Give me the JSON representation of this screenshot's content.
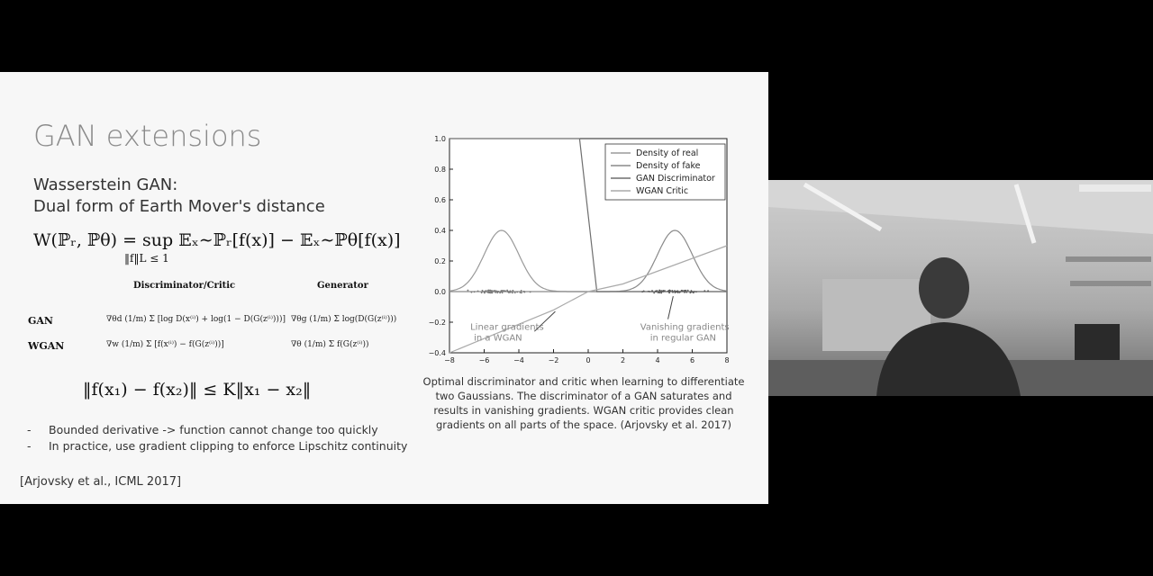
{
  "slide": {
    "title": "GAN extensions",
    "subtitle_line1": "Wasserstein GAN:",
    "subtitle_line2": "Dual form of Earth Mover's distance",
    "formula_main": "W(ℙᵣ, ℙθ) =  sup   𝔼ₓ∼ℙᵣ[f(x)] − 𝔼ₓ∼ℙθ[f(x)]",
    "formula_sub": "‖f‖L ≤ 1",
    "table": {
      "col_discriminator": "Discriminator/Critic",
      "col_generator": "Generator",
      "row_gan": "GAN",
      "row_wgan": "WGAN",
      "gan_disc": "∇θd (1/m) Σ [log D(x⁽ⁱ⁾) + log(1 − D(G(z⁽ⁱ⁾)))]",
      "gan_gen": "∇θg (1/m) Σ log(D(G(z⁽ⁱ⁾)))",
      "wgan_disc": "∇w (1/m) Σ [f(x⁽ⁱ⁾) − f(G(z⁽ⁱ⁾))]",
      "wgan_gen": "∇θ (1/m) Σ f(G(z⁽ⁱ⁾))"
    },
    "formula_lipschitz": "‖f(x₁) − f(x₂)‖ ≤ K‖x₁ − x₂‖",
    "bullets": [
      "Bounded derivative -> function cannot change too quickly",
      "In practice, use gradient clipping to enforce Lipschitz continuity"
    ],
    "bullet_marker": "-",
    "citation": "[Arjovsky et al., ICML 2017]",
    "caption": "Optimal discriminator and critic when learning to differentiate two Gaussians. The discriminator of a GAN saturates and results in vanishing gradients. WGAN critic provides clean gradients on all parts of the space. (Arjovsky et al. 2017)"
  },
  "chart_data": {
    "type": "line",
    "xlim": [
      -8,
      8
    ],
    "ylim": [
      -0.4,
      1.0
    ],
    "x_ticks": [
      -8,
      -6,
      -4,
      -2,
      0,
      2,
      4,
      6,
      8
    ],
    "y_ticks": [
      -0.4,
      -0.2,
      0.0,
      0.2,
      0.4,
      0.6,
      0.8,
      1.0
    ],
    "legend_position": "top-right",
    "series": [
      {
        "name": "Density of real",
        "kind": "gaussian",
        "mean": -5,
        "std": 1,
        "peak": 0.4
      },
      {
        "name": "Density of fake",
        "kind": "gaussian",
        "mean": 5,
        "std": 1,
        "peak": 0.4
      },
      {
        "name": "GAN Discriminator",
        "kind": "sigmoid",
        "points": [
          [
            -8,
            1.0
          ],
          [
            -0.5,
            1.0
          ],
          [
            0.0,
            0.5
          ],
          [
            0.5,
            0.0
          ],
          [
            8,
            0.0
          ]
        ]
      },
      {
        "name": "WGAN Critic",
        "kind": "line",
        "points": [
          [
            -8,
            -0.4
          ],
          [
            -2,
            -0.12
          ],
          [
            0,
            0.0
          ],
          [
            2,
            0.05
          ],
          [
            8,
            0.3
          ]
        ]
      }
    ],
    "annotations": [
      {
        "text": "Linear gradients in a WGAN",
        "line1": "Linear gradients",
        "line2": "in a WGAN",
        "x": -6.8,
        "y": -0.25
      },
      {
        "text": "Vanishing gradients in regular GAN",
        "line1": "Vanishing gradients",
        "line2": "in regular GAN",
        "x": 3.0,
        "y": -0.25
      }
    ]
  },
  "colors": {
    "slide_bg": "#f7f7f7",
    "title_gray": "#8a8a8a",
    "series": [
      "#9a9a9a",
      "#8a8a8a",
      "#6f6f6f",
      "#aaaaaa"
    ]
  }
}
